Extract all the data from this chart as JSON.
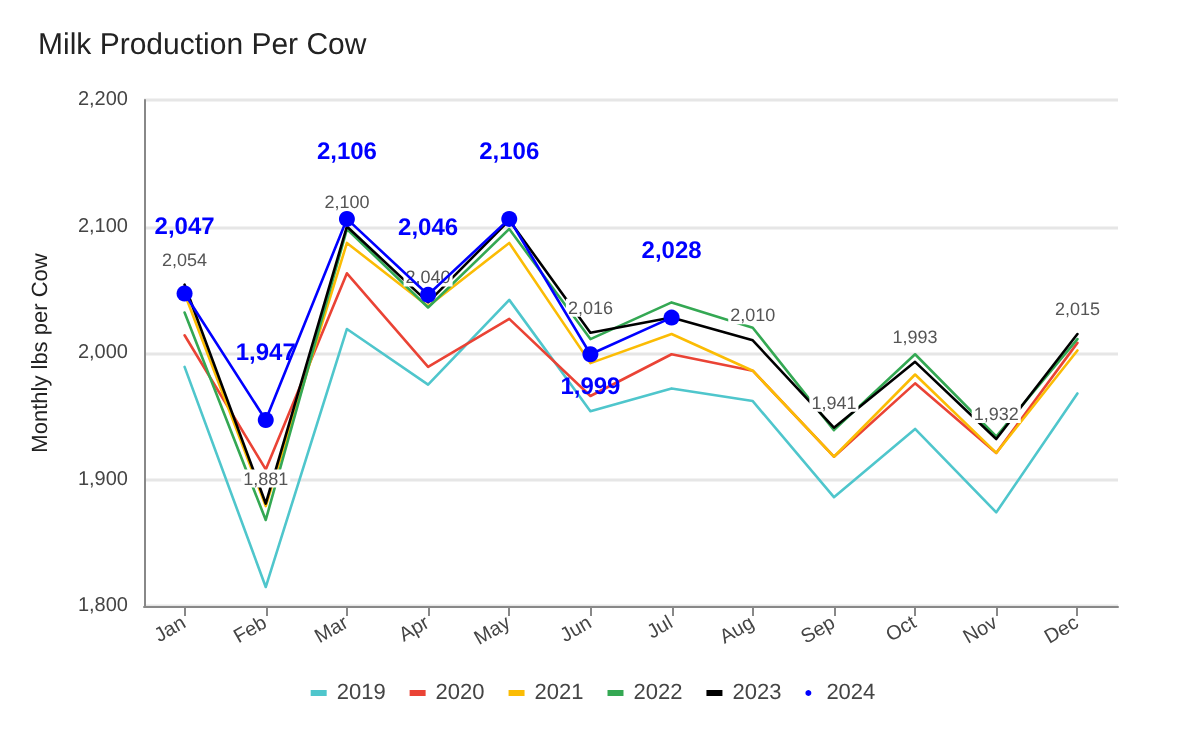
{
  "chart_data": {
    "type": "line",
    "title": "Milk Production Per Cow",
    "ylabel": "Monthly lbs per Cow",
    "categories": [
      "Jan",
      "Feb",
      "Mar",
      "Apr",
      "May",
      "Jun",
      "Jul",
      "Aug",
      "Sep",
      "Oct",
      "Nov",
      "Dec"
    ],
    "series": [
      {
        "name": "2019",
        "color": "#4fc6cc",
        "marker": "none",
        "values": [
          1989,
          1815,
          2019,
          1975,
          2042,
          1954,
          1972,
          1962,
          1886,
          1940,
          1874,
          1968
        ]
      },
      {
        "name": "2020",
        "color": "#ea4335",
        "marker": "none",
        "values": [
          2014,
          1908,
          2063,
          1989,
          2027,
          1966,
          1999,
          1986,
          1918,
          1976,
          1921,
          2008
        ]
      },
      {
        "name": "2021",
        "color": "#fbbc04",
        "marker": "none",
        "values": [
          2047,
          1879,
          2087,
          2037,
          2087,
          1992,
          2015,
          1986,
          1918,
          1983,
          1921,
          2002
        ]
      },
      {
        "name": "2022",
        "color": "#34a853",
        "marker": "none",
        "values": [
          2032,
          1868,
          2098,
          2036,
          2098,
          2011,
          2040,
          2020,
          1939,
          1999,
          1934,
          2011
        ]
      },
      {
        "name": "2023",
        "color": "#000000",
        "marker": "none",
        "values": [
          2054,
          1881,
          2100,
          2040,
          2105,
          2016,
          2028,
          2010,
          1941,
          1993,
          1932,
          2015
        ],
        "value_labels": [
          "2,054",
          "1,881",
          "2,100",
          "2,040",
          null,
          "2,016",
          null,
          "2,010",
          "1,941",
          "1,993",
          "1,932",
          "2,015"
        ]
      },
      {
        "name": "2024",
        "color": "#0000ff",
        "marker": "circle",
        "values": [
          2047,
          1947,
          2106,
          2046,
          2106,
          1999,
          2028,
          null,
          null,
          null,
          null,
          null
        ],
        "value_labels": [
          "2,047",
          "1,947",
          "2,106",
          "2,046",
          "2,106",
          "1,999",
          "2,028",
          null,
          null,
          null,
          null,
          null
        ]
      }
    ],
    "ylim": [
      1800,
      2200
    ],
    "yticks": [
      {
        "value": 1800,
        "label": "1,800"
      },
      {
        "value": 1900,
        "label": "1,900"
      },
      {
        "value": 2000,
        "label": "2,000"
      },
      {
        "value": 2100,
        "label": "2,100"
      },
      {
        "value": 2200,
        "label": "2,200"
      }
    ],
    "grid": "y",
    "legend": "bottom",
    "line_style": "solid"
  }
}
